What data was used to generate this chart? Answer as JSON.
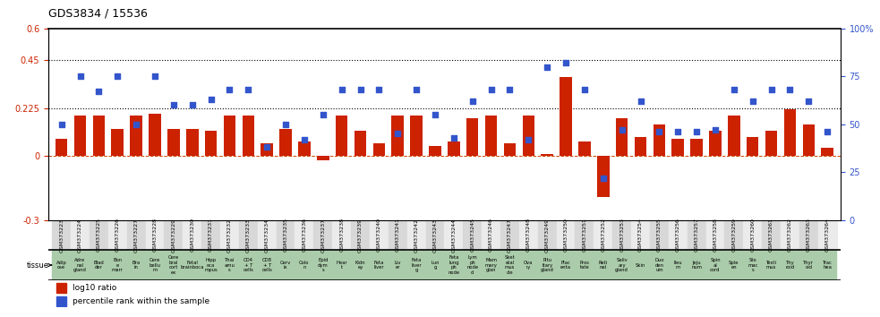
{
  "title": "GDS3834 / 15536",
  "gsm_ids": [
    "GSM373223",
    "GSM373224",
    "GSM373225",
    "GSM373226",
    "GSM373227",
    "GSM373228",
    "GSM373229",
    "GSM373230",
    "GSM373231",
    "GSM373232",
    "GSM373233",
    "GSM373234",
    "GSM373235",
    "GSM373236",
    "GSM373237",
    "GSM373238",
    "GSM373239",
    "GSM373240",
    "GSM373241",
    "GSM373242",
    "GSM373243",
    "GSM373244",
    "GSM373245",
    "GSM373246",
    "GSM373247",
    "GSM373248",
    "GSM373249",
    "GSM373250",
    "GSM373251",
    "GSM373252",
    "GSM373253",
    "GSM373254",
    "GSM373255",
    "GSM373256",
    "GSM373257",
    "GSM373258",
    "GSM373259",
    "GSM373260",
    "GSM373261",
    "GSM373262",
    "GSM373263",
    "GSM373264"
  ],
  "tissue_labels": [
    "Adip\nose",
    "Adre\nnal\ngland",
    "Blad\nder",
    "Bon\ne\nmarr",
    "Bra\nin",
    "Cere\nbellu\nm",
    "Cere\nbral\ncort\nex",
    "Fetal\nbrainboca",
    "Hipp\noca\nmpus",
    "Thai\namu\ns",
    "CD4\n+ T\ncells",
    "CD8\n+ T\ncells",
    "Cerv\nix",
    "Colo\nn",
    "Epid\ndym\ns",
    "Hear\nt",
    "Kidn\ney",
    "Feta\nliver",
    "Liv\ner",
    "Feta\nliver\ng",
    "Lun\ng",
    "Feta\nlung\nph\nnode",
    "Lym\nph\nnode\nd",
    "Mam\nmary\nglan",
    "Sket\netal\nmus\ncle",
    "Ova\nry",
    "Pitu\nitary\ngland",
    "Plac\nenta",
    "Pros\ntate",
    "Reti\nnal",
    "Saliv\nary\ngland",
    "Skin",
    "Duo\nden\num",
    "Ileu\nm",
    "Jeju\nnum",
    "Spin\nal\ncord",
    "Sple\nen",
    "Sto\nmac\ns",
    "Testi\nmus",
    "Thy\nroid",
    "Thyr\noid",
    "Trac\nhea"
  ],
  "log10_ratio": [
    0.08,
    0.19,
    0.19,
    0.13,
    0.19,
    0.2,
    0.13,
    0.13,
    0.12,
    0.19,
    0.19,
    0.06,
    0.13,
    0.07,
    -0.02,
    0.19,
    0.12,
    0.06,
    0.19,
    0.19,
    0.05,
    0.07,
    0.18,
    0.19,
    0.06,
    0.19,
    0.01,
    0.37,
    0.07,
    -0.19,
    0.18,
    0.09,
    0.15,
    0.08,
    0.08,
    0.12,
    0.19,
    0.09,
    0.12,
    0.22,
    0.15,
    0.04
  ],
  "percentile": [
    50,
    75,
    67,
    75,
    50,
    75,
    60,
    60,
    63,
    68,
    68,
    38,
    50,
    42,
    55,
    68,
    68,
    68,
    45,
    68,
    55,
    43,
    62,
    68,
    68,
    42,
    80,
    82,
    68,
    22,
    47,
    62,
    46,
    46,
    46,
    47,
    68,
    62,
    68,
    68,
    62,
    46
  ],
  "bar_color": "#cc2200",
  "dot_color": "#3355cc",
  "ref_line_color": "#cc4400",
  "hline_color": "black",
  "ylim_left": [
    -0.3,
    0.6
  ],
  "ylim_right": [
    0,
    100
  ],
  "yticks_left": [
    -0.3,
    0.0,
    0.225,
    0.45,
    0.6
  ],
  "ytick_labels_left": [
    "-0.3",
    "0",
    "0.225",
    "0.45",
    "0.6"
  ],
  "yticks_right": [
    0,
    25,
    50,
    75,
    100
  ],
  "ytick_labels_right": [
    "0",
    "25",
    "50",
    "75",
    "100%"
  ],
  "hlines": [
    0.225,
    0.45
  ],
  "background_color": "#ffffff",
  "gsm_stripe_even": "#d8d8d8",
  "gsm_stripe_odd": "#ebebeb",
  "tissue_green": "#aaccaa"
}
